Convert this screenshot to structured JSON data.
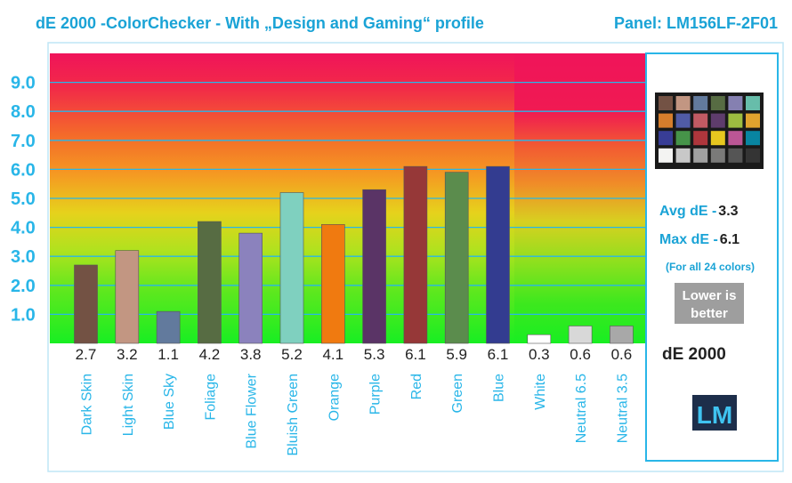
{
  "header": {
    "title": "dE 2000 -ColorChecker - With „Design and Gaming“ profile",
    "panel": "Panel: LM156LF-2F01"
  },
  "legend": {
    "avg_label": "Avg dE -",
    "avg_value": "3.3",
    "max_label": "Max dE -",
    "max_value": "6.1",
    "note": "(For all 24 colors)",
    "lower_line1": "Lower is",
    "lower_line2": "better",
    "metric": "dE 2000",
    "logo": "LM"
  },
  "colors": {
    "title": "#1aa3d6",
    "accent": "#29b6e8",
    "panel_bg": "#ffffff",
    "badge": "#9e9e9e",
    "logo_bg": "#1d2e4a",
    "logo_fg": "#3fc3f0"
  },
  "checker": [
    "#735244",
    "#c29682",
    "#627a9d",
    "#576c43",
    "#8580b1",
    "#67bdaa",
    "#d67e2c",
    "#505ba6",
    "#c15a63",
    "#5e3c6c",
    "#9dbc40",
    "#e0a32e",
    "#383d96",
    "#469449",
    "#af363c",
    "#e7c71f",
    "#bb5695",
    "#0885a1",
    "#f3f3f2",
    "#c8c8c8",
    "#a0a0a0",
    "#7a7a79",
    "#555555",
    "#343434"
  ],
  "chart_data": {
    "type": "bar",
    "title": "dE 2000 -ColorChecker - With „Design and Gaming“ profile",
    "xlabel": "",
    "ylabel": "",
    "ylim": [
      0,
      10
    ],
    "yticks": [
      1.0,
      2.0,
      3.0,
      4.0,
      5.0,
      6.0,
      7.0,
      8.0,
      9.0
    ],
    "grid": true,
    "categories": [
      "Dark Skin",
      "Light Skin",
      "Blue Sky",
      "Foliage",
      "Blue Flower",
      "Bluish Green",
      "Orange",
      "Purple",
      "Red",
      "Green",
      "Blue",
      "White",
      "Neutral 6.5",
      "Neutral 3.5"
    ],
    "values": [
      2.7,
      3.2,
      1.1,
      4.2,
      3.8,
      5.2,
      4.1,
      5.3,
      6.1,
      5.9,
      6.1,
      0.3,
      0.6,
      0.6
    ],
    "value_labels": [
      "2.7",
      "3.2",
      "1.1",
      "4.2",
      "3.8",
      "5.2",
      "4.1",
      "5.3",
      "6.1",
      "5.9",
      "6.1",
      "0.3",
      "0.6",
      "0.6"
    ],
    "bar_colors": [
      "#735244",
      "#c29682",
      "#627a9d",
      "#576c43",
      "#8b82bd",
      "#7fd0bf",
      "#f07a10",
      "#5a3466",
      "#963838",
      "#5b8c4d",
      "#333c90",
      "#ffffff",
      "#d8d8d8",
      "#a8a8a8"
    ]
  }
}
